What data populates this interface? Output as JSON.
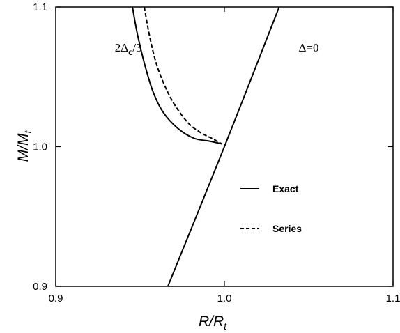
{
  "chart_data": {
    "type": "line",
    "xlabel": {
      "main": "R/R",
      "sub": "t"
    },
    "ylabel": {
      "main": "M/M",
      "sub": "t"
    },
    "xlim": [
      0.9,
      1.1
    ],
    "ylim": [
      0.9,
      1.1
    ],
    "x_ticks": [
      "0.9",
      "1.0",
      "1.1"
    ],
    "y_ticks": [
      "0.9",
      "1.0",
      "1.1"
    ],
    "grid": false,
    "legend_position": "right-middle",
    "series": [
      {
        "name": "Exact",
        "style": "solid",
        "points": [
          [
            0.9455,
            1.1
          ],
          [
            0.9485,
            1.08
          ],
          [
            0.9525,
            1.06
          ],
          [
            0.9575,
            1.04
          ],
          [
            0.9635,
            1.025
          ],
          [
            0.9725,
            1.013
          ],
          [
            0.982,
            1.006
          ],
          [
            0.991,
            1.004
          ],
          [
            0.9985,
            1.002
          ]
        ]
      },
      {
        "name": "Series",
        "style": "dashed",
        "points": [
          [
            0.9525,
            1.1
          ],
          [
            0.9555,
            1.08
          ],
          [
            0.9595,
            1.06
          ],
          [
            0.9645,
            1.044
          ],
          [
            0.9705,
            1.03
          ],
          [
            0.9785,
            1.017
          ],
          [
            0.986,
            1.01
          ],
          [
            0.9925,
            1.006
          ],
          [
            0.9985,
            1.002
          ]
        ]
      },
      {
        "name": "",
        "style": "solid",
        "points": [
          [
            0.9665,
            0.9
          ],
          [
            1.0,
            1.0
          ],
          [
            1.0325,
            1.1
          ]
        ]
      }
    ],
    "annotations": [
      {
        "text": "2Δ",
        "sub": "c",
        "tail": "/3",
        "x": 0.935,
        "y": 1.068
      },
      {
        "text": "Δ=0",
        "x": 1.044,
        "y": 1.068
      }
    ],
    "legend": [
      {
        "name": "Exact",
        "style": "solid"
      },
      {
        "name": "Series",
        "style": "dashed"
      }
    ]
  }
}
